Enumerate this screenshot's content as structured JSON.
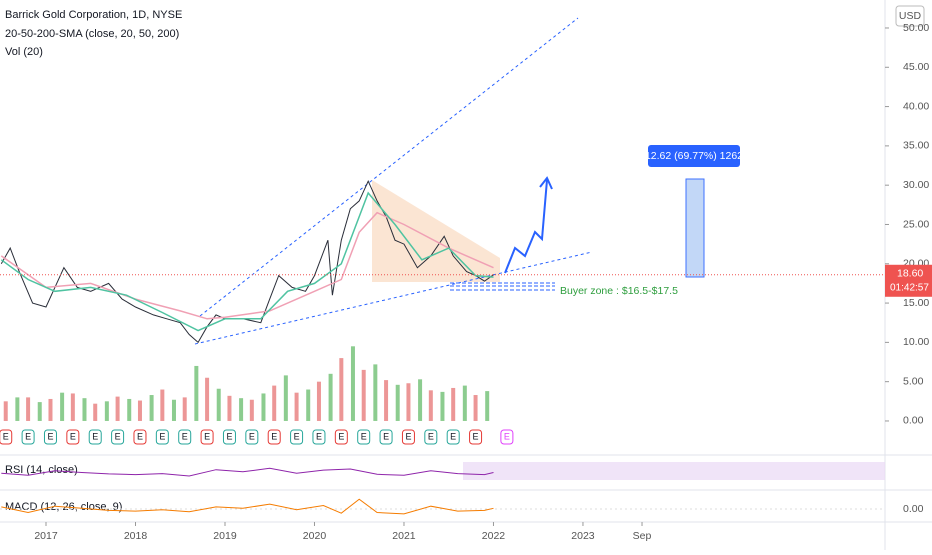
{
  "chart_data": {
    "type": "line",
    "title": "Barrick Gold Corporation, 1D, NYSE",
    "indicator_label": "20-50-200-SMA (close, 20, 50, 200)",
    "volume_label": "Vol (20)",
    "rsi_label": "RSI (14, close)",
    "macd_label": "MACD (12, 26, close, 9)",
    "currency": "USD",
    "measure_label": "12.62 (69.77%) 1262",
    "buyer_zone_label": "Buyer zone : $16.5-$17.5",
    "last_price": {
      "value": 18.6,
      "label": "18.60"
    },
    "countdown": "01:42:57",
    "xlim": [
      2016.486,
      2026.375
    ],
    "ylim": [
      -4.33,
      53.56
    ],
    "xticks": [
      2017,
      2018,
      2019,
      2020,
      2021,
      2022,
      2023,
      {
        "value": 2023.66,
        "label": "Sep"
      }
    ],
    "yticks": [
      {
        "value": 0,
        "label": "0.00"
      },
      {
        "value": 5,
        "label": "5.00"
      },
      {
        "value": 10,
        "label": "10.00"
      },
      {
        "value": 15,
        "label": "15.00"
      },
      {
        "value": 20,
        "label": "20.00"
      },
      {
        "value": 25,
        "label": "25.00"
      },
      {
        "value": 30,
        "label": "30.00"
      },
      {
        "value": 35,
        "label": "35.00"
      },
      {
        "value": 40,
        "label": "40.00"
      },
      {
        "value": 45,
        "label": "45.00"
      },
      {
        "value": 50,
        "label": "50.00"
      }
    ],
    "macd_yticks": [
      {
        "value": 0,
        "label": "0.00"
      }
    ],
    "series": [
      {
        "color": "#2a2e39",
        "x": [
          2016.5,
          2016.6,
          2016.7,
          2016.85,
          2017.0,
          2017.1,
          2017.2,
          2017.35,
          2017.5,
          2017.7,
          2017.85,
          2018.0,
          2018.2,
          2018.35,
          2018.5,
          2018.6,
          2018.7,
          2018.8,
          2018.9,
          2019.0,
          2019.2,
          2019.4,
          2019.5,
          2019.6,
          2019.75,
          2019.9,
          2020.0,
          2020.15,
          2020.2,
          2020.3,
          2020.4,
          2020.5,
          2020.6,
          2020.7,
          2020.8,
          2020.9,
          2021.0,
          2021.15,
          2021.3,
          2021.45,
          2021.55,
          2021.7,
          2021.8,
          2021.9,
          2022.0
        ],
        "values": [
          20,
          22,
          19,
          15,
          14.5,
          17,
          19.5,
          17,
          16.5,
          17.5,
          15.5,
          14.5,
          13.5,
          13,
          12.5,
          11,
          10,
          12,
          13.5,
          13,
          13,
          12.5,
          15.5,
          18.5,
          17,
          16.5,
          18.5,
          23,
          16,
          23,
          27,
          28,
          30.5,
          28,
          26,
          23,
          22.5,
          19.5,
          21,
          23.5,
          21,
          19,
          18.5,
          17.8,
          18.6
        ]
      },
      {
        "color": "#f0a0b4",
        "x": [
          2016.5,
          2017.0,
          2017.5,
          2018.0,
          2018.5,
          2018.8,
          2019.0,
          2019.5,
          2020.0,
          2020.3,
          2020.5,
          2020.7,
          2021.0,
          2021.5,
          2022.0
        ],
        "values": [
          21,
          17,
          17.5,
          15.5,
          14,
          13,
          13.2,
          14,
          16.5,
          18,
          24,
          26.5,
          25,
          22,
          19.5
        ]
      },
      {
        "color": "#4fc3a1",
        "x": [
          2016.5,
          2016.8,
          2017.1,
          2017.5,
          2017.9,
          2018.3,
          2018.7,
          2019.0,
          2019.4,
          2019.7,
          2020.0,
          2020.3,
          2020.6,
          2020.9,
          2021.2,
          2021.5,
          2021.8,
          2022.0
        ],
        "values": [
          20.5,
          18,
          16.5,
          17,
          16,
          13.8,
          11.5,
          13,
          13,
          16.5,
          17.5,
          20,
          29,
          25,
          20.5,
          22,
          18.5,
          18.3
        ]
      }
    ],
    "volume": [
      {
        "color": "#e57373",
        "x": [
          2016.55,
          2016.8,
          2017.05,
          2017.3,
          2017.55,
          2017.8,
          2018.05,
          2018.3,
          2018.55,
          2018.8,
          2019.05,
          2019.3,
          2019.55,
          2019.8,
          2020.05,
          2020.3,
          2020.55,
          2020.8,
          2021.05,
          2021.3,
          2021.55,
          2021.8
        ],
        "values": [
          2.5,
          3,
          2.8,
          3.5,
          2.2,
          3.1,
          2.6,
          4,
          3,
          5.5,
          3.2,
          2.7,
          4.5,
          3.6,
          5,
          8,
          6.5,
          5.2,
          4.8,
          3.9,
          4.2,
          3.3
        ]
      },
      {
        "color": "#66bb6a",
        "x": [
          2016.68,
          2016.93,
          2017.18,
          2017.43,
          2017.68,
          2017.93,
          2018.18,
          2018.43,
          2018.68,
          2018.93,
          2019.18,
          2019.43,
          2019.68,
          2019.93,
          2020.18,
          2020.43,
          2020.68,
          2020.93,
          2021.18,
          2021.43,
          2021.68,
          2021.93
        ],
        "values": [
          3,
          2.4,
          3.6,
          2.9,
          2.5,
          2.8,
          3.3,
          2.7,
          7,
          4.1,
          2.9,
          3.5,
          5.8,
          4,
          6,
          9.5,
          7.2,
          4.6,
          5.3,
          3.7,
          4.5,
          3.8
        ]
      }
    ],
    "earnings": {
      "label": "E",
      "x": [
        2016.55,
        2016.8,
        2017.05,
        2017.3,
        2017.55,
        2017.8,
        2018.05,
        2018.3,
        2018.55,
        2018.8,
        2019.05,
        2019.3,
        2019.55,
        2019.8,
        2020.05,
        2020.3,
        2020.55,
        2020.8,
        2021.05,
        2021.3,
        2021.55,
        2021.8
      ],
      "next_x": 2022.15
    },
    "rsi": {
      "color": "#8e24aa",
      "x": [
        2016.5,
        2016.8,
        2017.1,
        2017.4,
        2017.7,
        2018.0,
        2018.3,
        2018.6,
        2018.9,
        2019.2,
        2019.5,
        2019.8,
        2020.1,
        2020.4,
        2020.7,
        2021.0,
        2021.3,
        2021.6,
        2021.9,
        2022.0
      ],
      "values": [
        48,
        42,
        55,
        50,
        46,
        44,
        47,
        40,
        58,
        52,
        62,
        48,
        57,
        60,
        45,
        42,
        55,
        47,
        44,
        50
      ]
    },
    "macd": {
      "color": "#f57c00",
      "x": [
        2016.5,
        2016.8,
        2017.1,
        2017.4,
        2017.7,
        2018.0,
        2018.3,
        2018.6,
        2018.9,
        2019.2,
        2019.5,
        2019.8,
        2020.1,
        2020.3,
        2020.5,
        2020.7,
        2021.0,
        2021.3,
        2021.6,
        2021.9,
        2022.0
      ],
      "values": [
        0.3,
        -0.5,
        0.4,
        0.1,
        -0.2,
        -0.3,
        -0.1,
        -0.4,
        0.3,
        0.1,
        0.7,
        -0.1,
        0.5,
        -0.6,
        1.4,
        -0.5,
        -0.7,
        0.4,
        -0.3,
        -0.2,
        0.1
      ]
    }
  }
}
